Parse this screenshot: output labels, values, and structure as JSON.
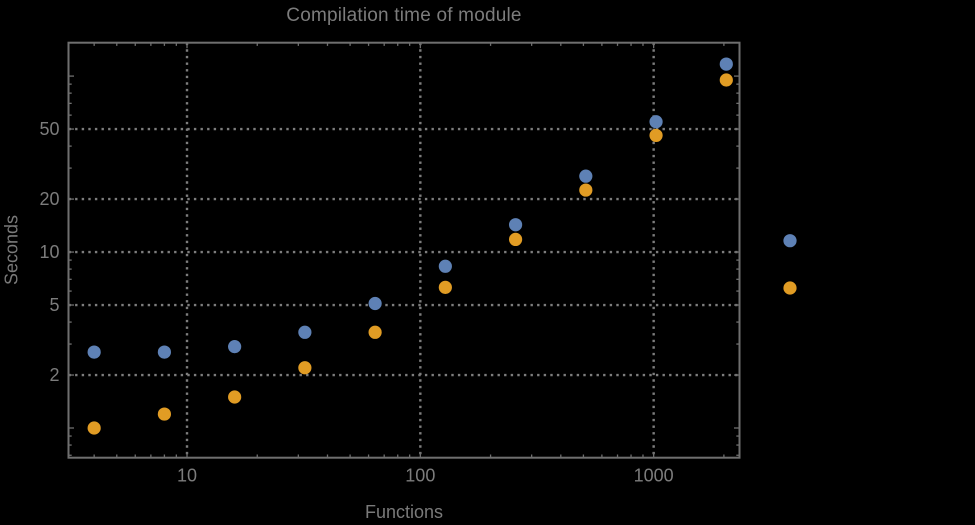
{
  "chart_data": {
    "type": "scatter",
    "title": "Compilation time of module",
    "xlabel": "Functions",
    "ylabel": "Seconds",
    "x_scale": "log",
    "y_scale": "log",
    "xlim": [
      3.105,
      2333
    ],
    "ylim": [
      0.678,
      154.8
    ],
    "grid": "dotted",
    "x": [
      4,
      8,
      16,
      32,
      64,
      128,
      256,
      512,
      1024,
      2048
    ],
    "series": [
      {
        "name": "series-1-blue",
        "color": "#5E81B5",
        "values": [
          2.7,
          2.7,
          2.9,
          3.5,
          5.1,
          8.3,
          14.3,
          27,
          55,
          117
        ]
      },
      {
        "name": "series-2-orange",
        "color": "#E19C24",
        "values": [
          1.0,
          1.2,
          1.5,
          2.2,
          3.5,
          6.3,
          11.8,
          22.5,
          46,
          95
        ]
      }
    ],
    "x_ticks_labeled": [
      10,
      100,
      1000
    ],
    "x_tick_labels": [
      "10",
      "100",
      "1000"
    ],
    "x_ticks_minor": [
      4,
      5,
      6,
      7,
      8,
      9,
      20,
      30,
      40,
      50,
      60,
      70,
      80,
      90,
      200,
      300,
      400,
      500,
      600,
      700,
      800,
      900,
      2000
    ],
    "y_ticks_labeled": [
      2,
      5,
      10,
      20,
      50
    ],
    "y_tick_labels": [
      "2",
      "5",
      "10",
      "20",
      "50"
    ],
    "y_ticks_unlabeled": [
      1,
      100
    ],
    "y_ticks_minor": [
      0.7,
      0.8,
      0.9,
      3,
      4,
      6,
      7,
      8,
      9,
      30,
      40,
      60,
      70,
      80,
      90
    ],
    "x_gridlines": [
      10,
      100,
      1000
    ],
    "y_gridlines": [
      2,
      5,
      10,
      20,
      50
    ],
    "legend": {
      "position": "right-outside",
      "entries": [
        {
          "name": "legend-series-1",
          "color": "#5E81B5",
          "label": ""
        },
        {
          "name": "legend-series-2",
          "color": "#E19C24",
          "label": ""
        }
      ]
    },
    "colors": {
      "background": "#000000",
      "frame": "#6f6f6f",
      "grid": "#7d7d7d",
      "text": "#7c7c7c"
    }
  }
}
